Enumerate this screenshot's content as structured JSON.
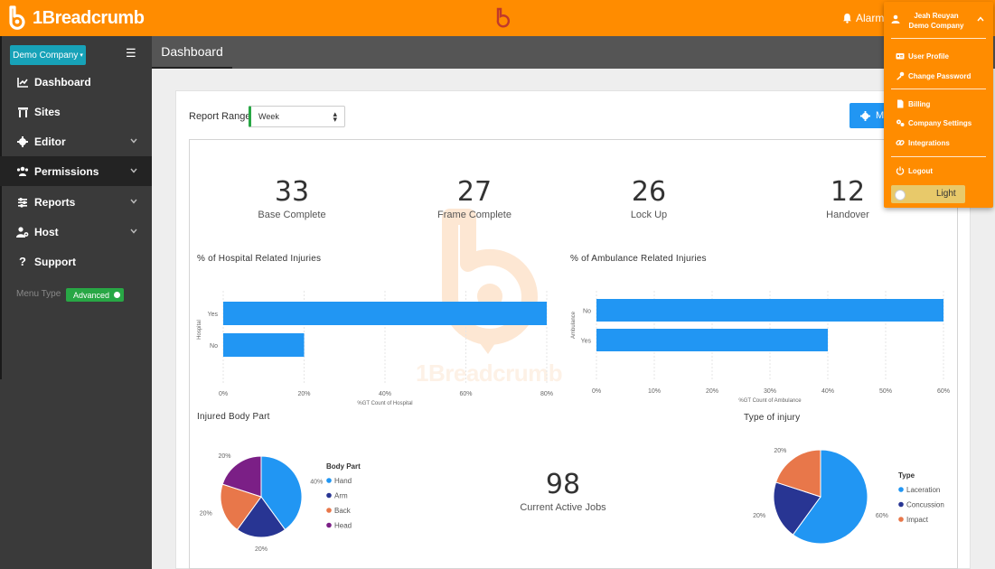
{
  "app": {
    "brand": "1Breadcrumb"
  },
  "header": {
    "alarm_label": "Alarm"
  },
  "sidebar": {
    "company": "Demo Company",
    "items": [
      {
        "label": "Dashboard",
        "icon": "chart-line-icon",
        "has_children": false
      },
      {
        "label": "Sites",
        "icon": "building-icon",
        "has_children": false
      },
      {
        "label": "Editor",
        "icon": "gear-icon",
        "has_children": true
      },
      {
        "label": "Permissions",
        "icon": "users-icon",
        "has_children": true
      },
      {
        "label": "Reports",
        "icon": "sliders-icon",
        "has_children": true
      },
      {
        "label": "Host",
        "icon": "user-gear-icon",
        "has_children": true
      },
      {
        "label": "Support",
        "icon": "question-icon",
        "has_children": false
      }
    ],
    "menu_type_label": "Menu Type",
    "menu_type_value": "Advanced"
  },
  "tabs": [
    {
      "label": "Dashboard",
      "active": true
    }
  ],
  "main": {
    "report_range_label": "Report Range",
    "report_range_value": "Week",
    "action_button_label": "M",
    "kpis": [
      {
        "value": "33",
        "label": "Base Complete"
      },
      {
        "value": "27",
        "label": "Frame Complete"
      },
      {
        "value": "26",
        "label": "Lock Up"
      },
      {
        "value": "12",
        "label": "Handover"
      }
    ],
    "active_jobs": {
      "value": "98",
      "label": "Current Active Jobs"
    },
    "watermark_text": "1Breadcrumb"
  },
  "chart_data": [
    {
      "type": "bar",
      "orientation": "horizontal",
      "title": "% of Hospital Related Injuries",
      "categories": [
        "Yes",
        "No"
      ],
      "values": [
        80,
        20
      ],
      "xlabel": "%GT Count of Hospital",
      "ylabel": "Hospital",
      "xlim": [
        0,
        80
      ],
      "xticks": [
        "0%",
        "20%",
        "40%",
        "60%",
        "80%"
      ],
      "color": "#2196f3"
    },
    {
      "type": "bar",
      "orientation": "horizontal",
      "title": "% of Ambulance Related Injuries",
      "categories": [
        "No",
        "Yes"
      ],
      "values": [
        60,
        40
      ],
      "xlabel": "%GT Count of Ambulance",
      "ylabel": "Ambulance",
      "xlim": [
        0,
        60
      ],
      "xticks": [
        "0%",
        "10%",
        "20%",
        "30%",
        "40%",
        "50%",
        "60%"
      ],
      "color": "#2196f3"
    },
    {
      "type": "pie",
      "title": "Injured Body Part",
      "legend_title": "Body Part",
      "legend": "right",
      "slices": [
        {
          "label": "Hand",
          "value": 40,
          "display": "40%",
          "color": "#2196f3"
        },
        {
          "label": "Arm",
          "value": 20,
          "display": "20%",
          "color": "#283593"
        },
        {
          "label": "Back",
          "value": 20,
          "display": "20%",
          "color": "#e8774a"
        },
        {
          "label": "Head",
          "value": 20,
          "display": "20%",
          "color": "#7b1f86"
        }
      ]
    },
    {
      "type": "pie",
      "title": "Type of injury",
      "legend_title": "Type",
      "legend": "right",
      "slices": [
        {
          "label": "Laceration",
          "value": 60,
          "display": "60%",
          "color": "#2196f3"
        },
        {
          "label": "Concussion",
          "value": 20,
          "display": "20%",
          "color": "#283593"
        },
        {
          "label": "Impact",
          "value": 20,
          "display": "20%",
          "color": "#e8774a"
        }
      ]
    }
  ],
  "user_menu": {
    "name": "Jeah Reuyan",
    "company": "Demo Company",
    "items": [
      {
        "label": "User Profile",
        "icon": "id-card-icon"
      },
      {
        "label": "Change Password",
        "icon": "key-icon"
      },
      {
        "label": "Billing",
        "icon": "file-icon"
      },
      {
        "label": "Company Settings",
        "icon": "gears-icon"
      },
      {
        "label": "Integrations",
        "icon": "link-icon"
      },
      {
        "label": "Logout",
        "icon": "power-icon"
      }
    ],
    "theme_label": "Light"
  },
  "colors": {
    "brand": "#ff8c00",
    "accent": "#2196f3",
    "sidebar": "#3a3a3a",
    "success": "#28a745",
    "info": "#17a2b8"
  }
}
